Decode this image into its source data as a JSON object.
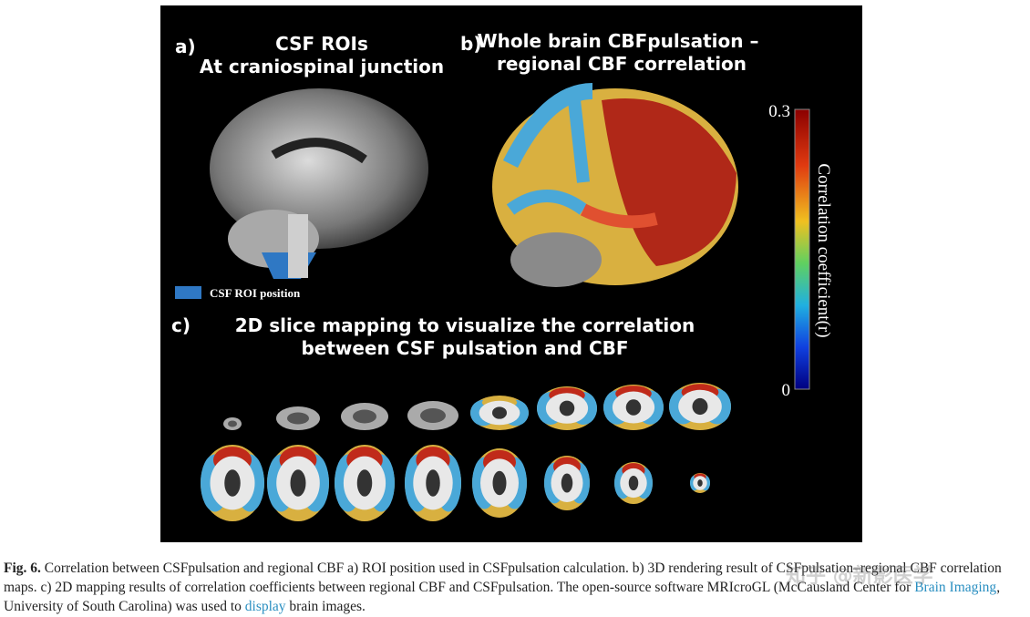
{
  "figure": {
    "panel_a": {
      "label": "a)",
      "title": [
        "CSF ROIs",
        "At craniospinal junction"
      ],
      "legend": "CSF ROI position"
    },
    "panel_b": {
      "label": "b)",
      "title": [
        "Whole brain CBFpulsation –",
        "regional CBF correlation"
      ],
      "colorbar": {
        "max": "0.3",
        "min": "0",
        "label": "Correlation coefficient(r)"
      }
    },
    "panel_c": {
      "label": "c)",
      "title": [
        "2D slice mapping to visualize the correlation",
        "between CSF pulsation and CBF"
      ]
    }
  },
  "caption": {
    "label": "Fig. 6.",
    "text_1": "Correlation between CSFpulsation and regional CBF a) ROI position used in CSFpulsation calculation. b) 3D rendering result of CSFpulsation–regional CBF correlation maps. c) 2D mapping results of correlation coefficients between regional CBF and CSFpulsation. The open-source software MRIcroGL (McCausland Center for",
    "link_1": "Brain Imaging",
    "text_2": ", University of South Carolina) was used to",
    "link_2": "display",
    "text_3": "brain images."
  },
  "watermark": "知乎 @新影医学"
}
